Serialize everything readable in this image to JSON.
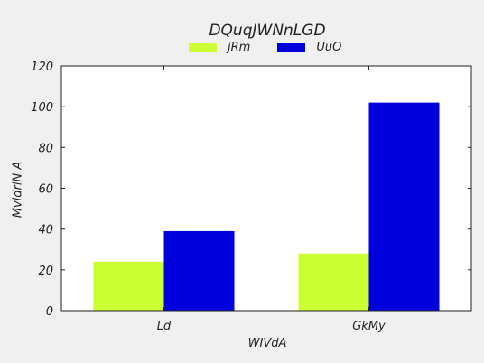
{
  "chart_data": {
    "type": "bar",
    "title": "DQuqJWNnLGD",
    "xlabel": "WIVdA",
    "ylabel": "MvidrlN A",
    "categories": [
      "Ld",
      "GkMy"
    ],
    "series": [
      {
        "name": "jRm",
        "values": [
          24,
          28
        ],
        "color": "#ccff33"
      },
      {
        "name": "UuO",
        "values": [
          39,
          102
        ],
        "color": "#0000dd"
      }
    ],
    "ylim": [
      0,
      120
    ],
    "yticks": [
      0,
      20,
      40,
      60,
      80,
      100,
      120
    ],
    "ytick_labels": [
      "0",
      "20",
      "40",
      "60",
      "80",
      "100",
      "120"
    ],
    "grid": false,
    "legend_position": "top-center"
  }
}
